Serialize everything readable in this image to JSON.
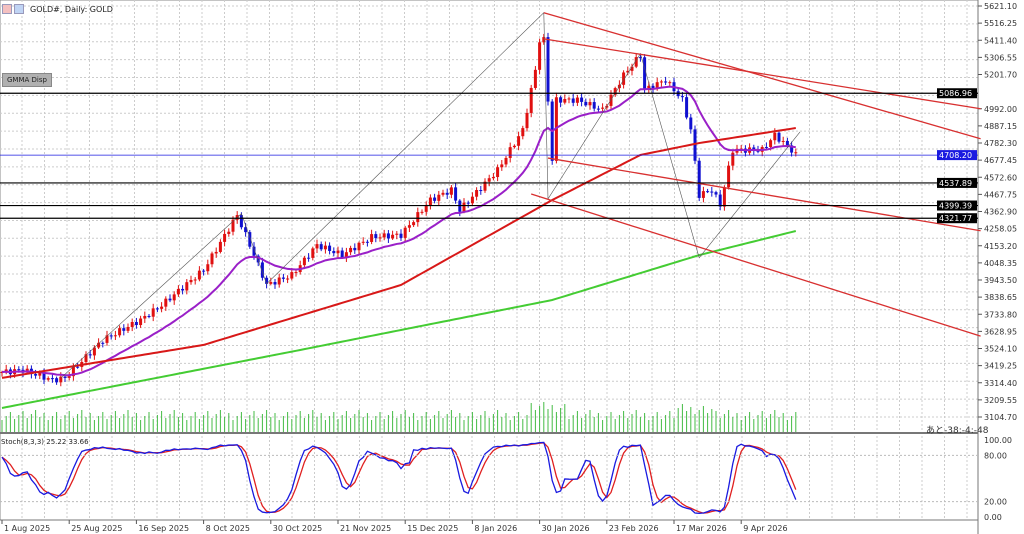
{
  "header": {
    "title": "GOLD#, Daily:  GOLD",
    "gmma_button": "GMMA Disp",
    "timer": "あと-38:-4:-48",
    "stoch_label": "Stoch(8,3,3) 25.22 33.66"
  },
  "colors": {
    "bull": "#e01010",
    "bear": "#1010d0",
    "ma_fast": "#9a20c8",
    "ma_mid": "#d81818",
    "ma_slow": "#44cc33",
    "trend": "#d83030",
    "volume": "#44bb44",
    "stoch_main": "#1a1ae0",
    "stoch_signal": "#e02020"
  },
  "chart_data": {
    "type": "candlestick",
    "title": "GOLD#, Daily",
    "ylim": [
      3104.7,
      5621.1
    ],
    "price_ticks": [
      "5621.10",
      "5516.25",
      "5411.40",
      "5306.55",
      "5201.70",
      "4992.00",
      "4887.15",
      "4782.30",
      "4677.45",
      "4572.60",
      "4467.75",
      "4362.90",
      "4258.05",
      "4153.20",
      "4048.35",
      "3943.50",
      "3838.65",
      "3733.80",
      "3628.95",
      "3524.10",
      "3419.25",
      "3314.40",
      "3209.55",
      "3104.70"
    ],
    "hlines": [
      {
        "price": 5086.96,
        "label": "5086.96",
        "color": "#000000"
      },
      {
        "price": 4708.2,
        "label": "4708.20",
        "color": "#1a1ae0"
      },
      {
        "price": 4537.89,
        "label": "4537.89",
        "color": "#000000"
      },
      {
        "price": 4399.39,
        "label": "4399.39",
        "color": "#000000"
      },
      {
        "price": 4321.77,
        "label": "4321.77",
        "color": "#000000"
      }
    ],
    "date_labels": [
      {
        "bar": 0,
        "text": "1 Aug 2025"
      },
      {
        "bar": 16,
        "text": "25 Aug 2025"
      },
      {
        "bar": 32,
        "text": "16 Sep 2025"
      },
      {
        "bar": 48,
        "text": "8 Oct 2025"
      },
      {
        "bar": 64,
        "text": "30 Oct 2025"
      },
      {
        "bar": 80,
        "text": "21 Nov 2025"
      },
      {
        "bar": 96,
        "text": "15 Dec 2025"
      },
      {
        "bar": 112,
        "text": "8 Jan 2026"
      },
      {
        "bar": 128,
        "text": "30 Jan 2026"
      },
      {
        "bar": 144,
        "text": "23 Feb 2026"
      },
      {
        "bar": 160,
        "text": "17 Mar 2026"
      },
      {
        "bar": 176,
        "text": "9 Apr 2026"
      }
    ],
    "bars": 190,
    "close_anchors": [
      [
        0,
        3380
      ],
      [
        5,
        3392
      ],
      [
        12,
        3331
      ],
      [
        15,
        3343
      ],
      [
        24,
        3576
      ],
      [
        33,
        3699
      ],
      [
        38,
        3790
      ],
      [
        48,
        4005
      ],
      [
        56,
        4341
      ],
      [
        57,
        4280
      ],
      [
        63,
        3913
      ],
      [
        69,
        3974
      ],
      [
        75,
        4158
      ],
      [
        81,
        4096
      ],
      [
        88,
        4207
      ],
      [
        95,
        4219
      ],
      [
        102,
        4433
      ],
      [
        107,
        4495
      ],
      [
        109,
        4372
      ],
      [
        118,
        4617
      ],
      [
        124,
        4862
      ],
      [
        127,
        5229
      ],
      [
        128,
        5413
      ],
      [
        129,
        5413
      ],
      [
        131,
        4678
      ],
      [
        132,
        5046
      ],
      [
        137,
        5046
      ],
      [
        143,
        4984
      ],
      [
        148,
        5198
      ],
      [
        152,
        5321
      ],
      [
        153,
        5107
      ],
      [
        158,
        5168
      ],
      [
        162,
        5046
      ],
      [
        164,
        4862
      ],
      [
        166,
        4464
      ],
      [
        169,
        4495
      ],
      [
        171,
        4403
      ],
      [
        174,
        4740
      ],
      [
        181,
        4740
      ],
      [
        184,
        4831
      ],
      [
        188,
        4740
      ],
      [
        189,
        4709
      ]
    ],
    "ma_mid_anchors": [
      [
        0,
        3344
      ],
      [
        48,
        3546
      ],
      [
        95,
        3913
      ],
      [
        131,
        4433
      ],
      [
        152,
        4709
      ],
      [
        166,
        4782
      ],
      [
        189,
        4874
      ]
    ],
    "ma_slow_anchors": [
      [
        0,
        3160
      ],
      [
        71,
        3515
      ],
      [
        131,
        3821
      ],
      [
        166,
        4096
      ],
      [
        190,
        4250
      ]
    ],
    "trendlines": [
      [
        [
          129,
          5580
        ],
        [
          233,
          4808
        ]
      ],
      [
        [
          129,
          5420
        ],
        [
          233,
          4992
        ]
      ],
      [
        [
          130,
          4690
        ],
        [
          233,
          4245
        ]
      ],
      [
        [
          126,
          4470
        ],
        [
          233,
          3600
        ]
      ]
    ],
    "zigzag": [
      [
        14,
        3343
      ],
      [
        57,
        4350
      ],
      [
        63,
        3920
      ],
      [
        129,
        5580
      ],
      [
        130,
        4440
      ],
      [
        152,
        5330
      ],
      [
        166,
        4080
      ],
      [
        190,
        4850
      ]
    ],
    "stoch": {
      "levels": [
        {
          "value": 100,
          "label": "100.00"
        },
        {
          "value": 80,
          "label": "80.00"
        },
        {
          "value": 20,
          "label": "20.00"
        },
        {
          "value": 0,
          "label": "0.00"
        }
      ],
      "last_k": 25.22,
      "last_d": 33.66
    }
  }
}
